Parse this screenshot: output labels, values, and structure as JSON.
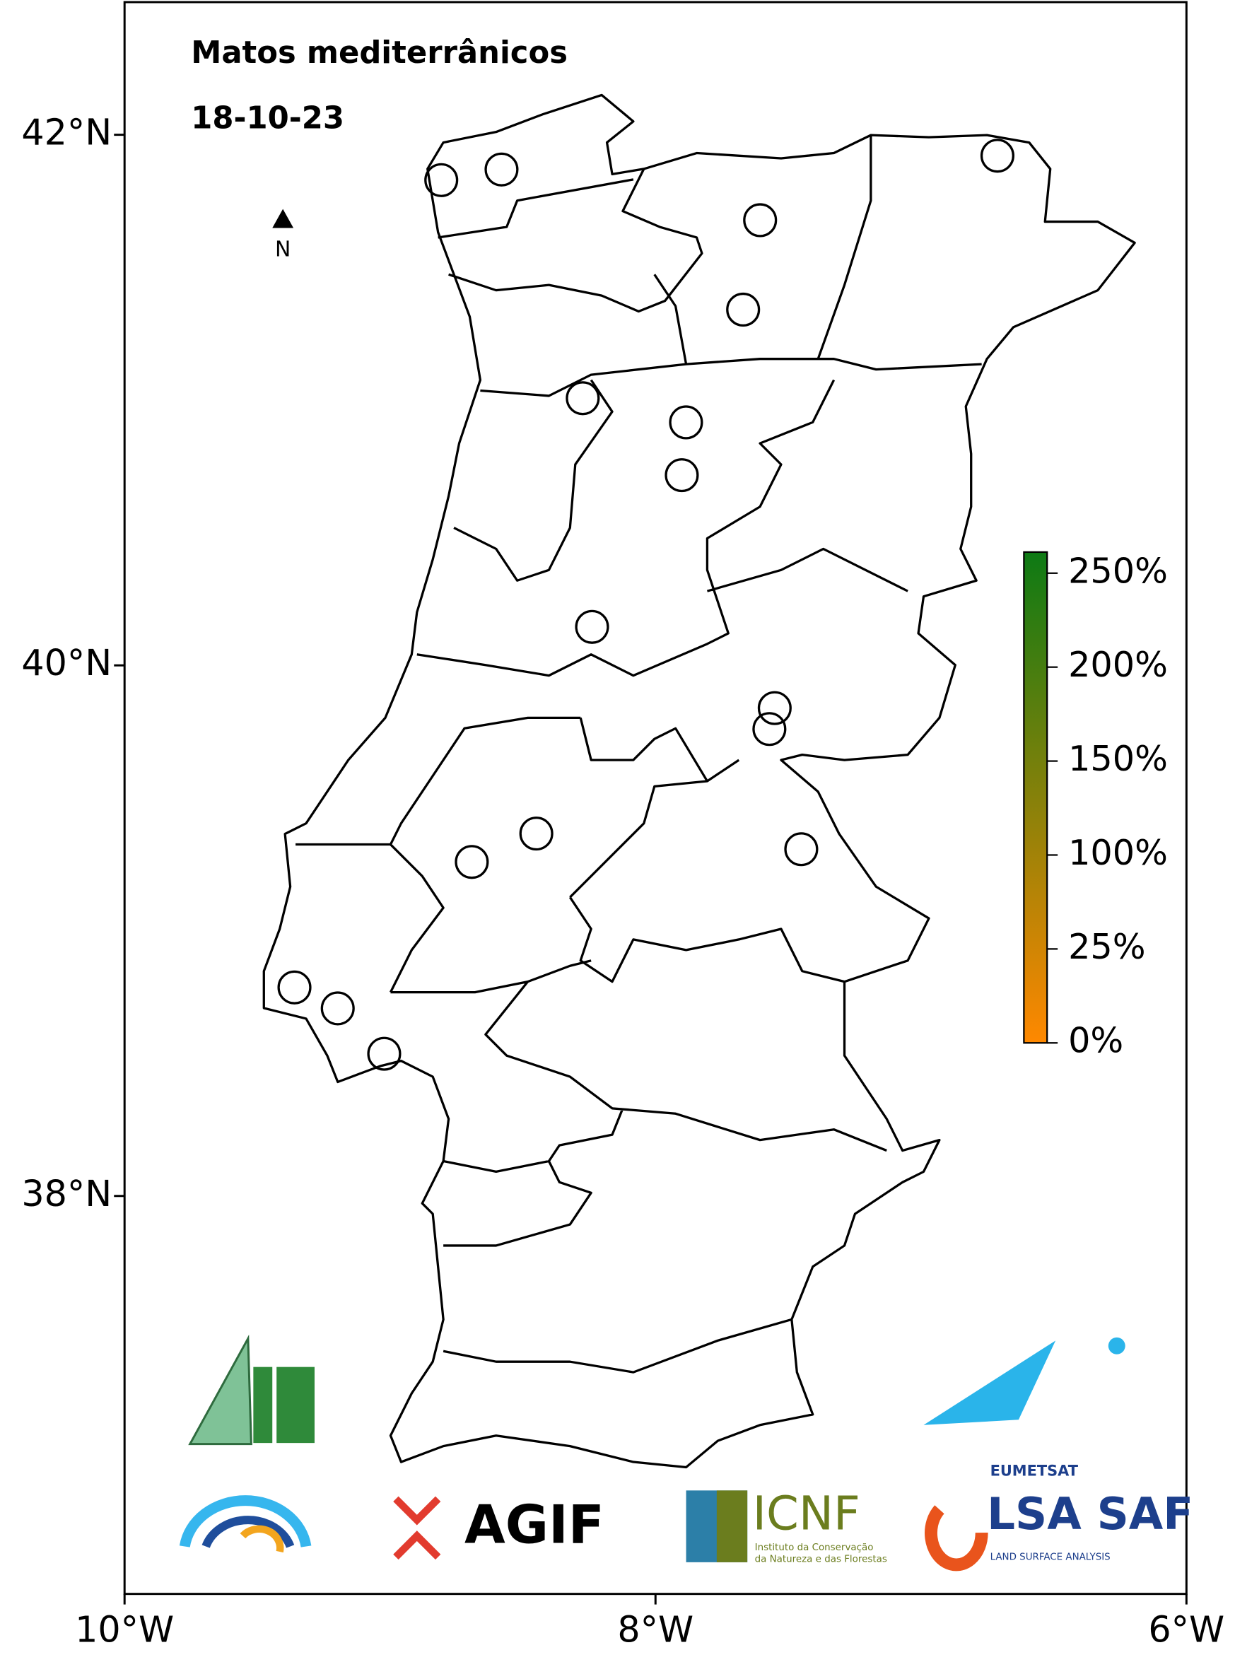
{
  "chart_data": {
    "type": "map",
    "title": "Matos mediterrânicos",
    "subtitle": "18-10-23",
    "north_label": "N",
    "xlim": [
      -10,
      -6
    ],
    "ylim": [
      36.5,
      42.5
    ],
    "xticks": [
      {
        "value": -10,
        "label": "10°W"
      },
      {
        "value": -8,
        "label": "8°W"
      },
      {
        "value": -6,
        "label": "6°W"
      }
    ],
    "yticks": [
      {
        "value": 38,
        "label": "38°N"
      },
      {
        "value": 40,
        "label": "40°N"
      },
      {
        "value": 42,
        "label": "42°N"
      }
    ],
    "stations": {
      "lon": [
        -8.807,
        -8.58,
        -7.606,
        -7.67,
        -6.712,
        -8.274,
        -7.885,
        -7.901,
        -8.239,
        -7.551,
        -7.571,
        -8.449,
        -8.692,
        -7.451,
        -9.36,
        -9.197,
        -9.022
      ],
      "lat": [
        41.829,
        41.869,
        41.678,
        41.341,
        41.921,
        41.007,
        40.916,
        40.717,
        40.145,
        39.839,
        39.76,
        39.366,
        39.259,
        39.307,
        38.786,
        38.707,
        38.536
      ]
    },
    "colorbar": {
      "colors": [
        "#ff8800",
        "#0d7a14"
      ],
      "ticks": [
        {
          "value": 0,
          "label": "0%"
        },
        {
          "value": 25,
          "label": "25%"
        },
        {
          "value": 100,
          "label": "100%"
        },
        {
          "value": 150,
          "label": "150%"
        },
        {
          "value": 200,
          "label": "200%"
        },
        {
          "value": 250,
          "label": "250%"
        }
      ]
    }
  },
  "logos": {
    "agif": "AGIF",
    "icnf": "ICNF",
    "icnf_subtitle": [
      "Instituto da Conservação",
      "da Natureza e das Florestas"
    ],
    "eumetsat": "EUMETSAT",
    "lsa_saf": "LSA SAF",
    "lsa_subtitle": "LAND SURFACE ANALYSIS"
  }
}
